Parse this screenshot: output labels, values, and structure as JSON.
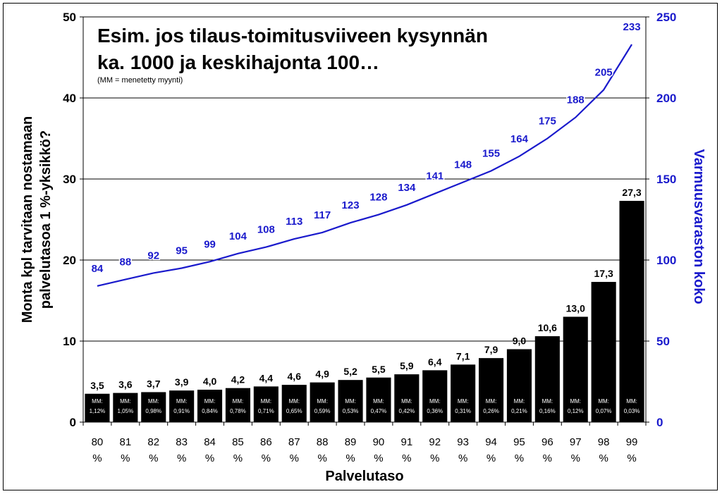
{
  "chart_data": {
    "type": "bar",
    "title_lines": [
      "Esim. jos tilaus-toimitusviiveen kysynnän",
      "ka. 1000 ja keskihajonta 100…"
    ],
    "subtitle": "(MM = menetetty myynti)",
    "xlabel": "Palvelutaso",
    "ylabel_lines": [
      "Monta kpl tarvitaan nostamaan",
      "palvelutasoa 1 %-yksikkö?"
    ],
    "y2label": "Varmuusvaraston koko",
    "categories": [
      [
        "80",
        "%"
      ],
      [
        "81",
        "%"
      ],
      [
        "82",
        "%"
      ],
      [
        "83",
        "%"
      ],
      [
        "84",
        "%"
      ],
      [
        "85",
        "%"
      ],
      [
        "86",
        "%"
      ],
      [
        "87",
        "%"
      ],
      [
        "88",
        "%"
      ],
      [
        "89",
        "%"
      ],
      [
        "90",
        "%"
      ],
      [
        "91",
        "%"
      ],
      [
        "92",
        "%"
      ],
      [
        "93",
        "%"
      ],
      [
        "94",
        "%"
      ],
      [
        "95",
        "%"
      ],
      [
        "96",
        "%"
      ],
      [
        "97",
        "%"
      ],
      [
        "98",
        "%"
      ],
      [
        "99",
        "%"
      ]
    ],
    "ylim": [
      0,
      50
    ],
    "yticks": [
      "0",
      "10",
      "20",
      "30",
      "40",
      "50"
    ],
    "y2lim": [
      0,
      250
    ],
    "y2ticks": [
      "0",
      "50",
      "100",
      "150",
      "200",
      "250"
    ],
    "grid": true,
    "bars": {
      "values": [
        3.5,
        3.6,
        3.7,
        3.9,
        4.0,
        4.2,
        4.4,
        4.6,
        4.9,
        5.2,
        5.5,
        5.9,
        6.4,
        7.1,
        7.9,
        9.0,
        10.6,
        13.0,
        17.3,
        27.3
      ],
      "labels": [
        "3,5",
        "3,6",
        "3,7",
        "3,9",
        "4,0",
        "4,2",
        "4,4",
        "4,6",
        "4,9",
        "5,2",
        "5,5",
        "5,9",
        "6,4",
        "7,1",
        "7,9",
        "9,0",
        "10,6",
        "13,0",
        "17,3",
        "27,3"
      ],
      "mm_prefix": "MM:",
      "mm_values": [
        "1,12%",
        "1,05%",
        "0,98%",
        "0,91%",
        "0,84%",
        "0,78%",
        "0,71%",
        "0,65%",
        "0,59%",
        "0,53%",
        "0,47%",
        "0,42%",
        "0,36%",
        "0,31%",
        "0,26%",
        "0,21%",
        "0,16%",
        "0,12%",
        "0,07%",
        "0,03%"
      ],
      "color": "#000000"
    },
    "line": {
      "axis": "secondary",
      "values": [
        84,
        88,
        92,
        95,
        99,
        104,
        108,
        113,
        117,
        123,
        128,
        134,
        141,
        148,
        155,
        164,
        175,
        188,
        205,
        233
      ],
      "labels": [
        "84",
        "88",
        "92",
        "95",
        "99",
        "104",
        "108",
        "113",
        "117",
        "123",
        "128",
        "134",
        "141",
        "148",
        "155",
        "164",
        "175",
        "188",
        "205",
        "233"
      ],
      "color": "#1a1acc"
    }
  }
}
